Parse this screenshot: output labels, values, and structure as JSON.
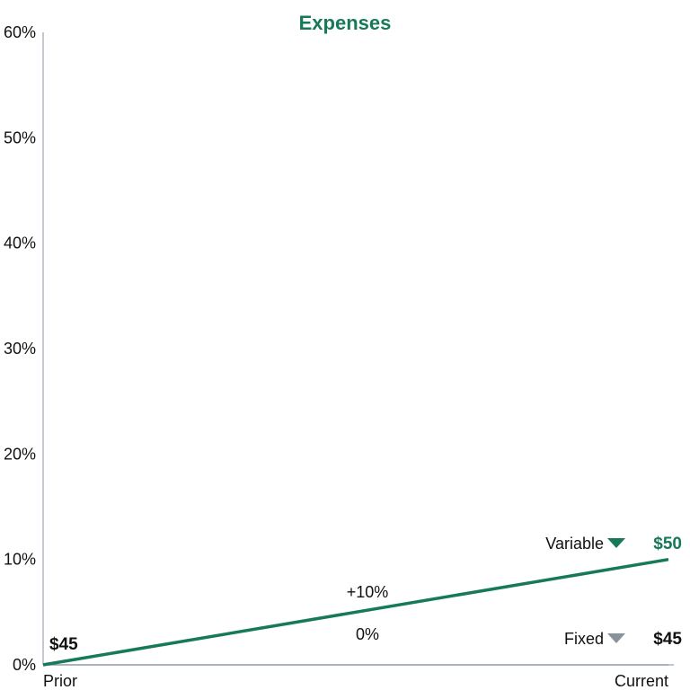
{
  "chart_data": {
    "type": "line",
    "title": "Expenses",
    "categories": [
      "Prior",
      "Current"
    ],
    "ylim": [
      0,
      60
    ],
    "yticks": [
      "0%",
      "10%",
      "20%",
      "30%",
      "40%",
      "50%",
      "60%"
    ],
    "ytick_values": [
      0,
      10,
      20,
      30,
      40,
      50,
      60
    ],
    "grid": false,
    "series": [
      {
        "name": "Variable",
        "values": [
          0,
          10
        ],
        "color": "#16795a",
        "start_label": "$45",
        "end_label": "$50",
        "change_label": "+10%",
        "marker": "down-triangle"
      },
      {
        "name": "Fixed",
        "values": [
          0,
          0
        ],
        "color": "#8a939c",
        "start_label": "$45",
        "end_label": "$45",
        "change_label": "0%",
        "marker": "down-triangle"
      }
    ],
    "colors": {
      "accent": "#16795a",
      "axis": "#9aa5b8",
      "muted": "#8a939c",
      "text": "#111111"
    }
  }
}
